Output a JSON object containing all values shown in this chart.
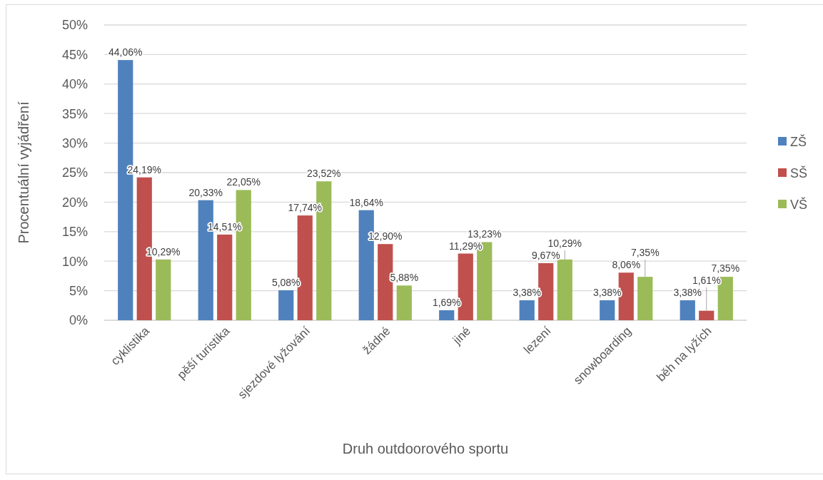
{
  "chart_data": {
    "type": "bar",
    "xlabel": "Druh outdoorového sportu",
    "ylabel": "Procentuální vyjádření",
    "categories": [
      "cyklistika",
      "pěší turistika",
      "sjezdové lyžování",
      "žádné",
      "jiné",
      "lezení",
      "snowboarding",
      "běh na lyžích"
    ],
    "series": [
      {
        "name": "ZŠ",
        "color": "#4f81bd",
        "values": [
          44.06,
          20.33,
          5.08,
          18.64,
          1.69,
          3.38,
          3.38,
          3.38
        ],
        "value_labels": [
          "44,06%",
          "20,33%",
          "5,08%",
          "18,64%",
          "1,69%",
          "3,38%",
          "3,38%",
          "3,38%"
        ]
      },
      {
        "name": "SŠ",
        "color": "#c0504d",
        "values": [
          24.19,
          14.51,
          17.74,
          12.9,
          11.29,
          9.67,
          8.06,
          1.61
        ],
        "value_labels": [
          "24,19%",
          "14,51%",
          "17,74%",
          "12,90%",
          "11,29%",
          "9,67%",
          "8,06%",
          "1,61%"
        ]
      },
      {
        "name": "VŠ",
        "color": "#9bbb59",
        "values": [
          10.29,
          22.05,
          23.52,
          5.88,
          13.23,
          10.29,
          7.35,
          7.35
        ],
        "value_labels": [
          "10,29%",
          "22,05%",
          "23,52%",
          "5,88%",
          "13,23%",
          "10,29%",
          "7,35%",
          "7,35%"
        ]
      }
    ],
    "ylim": [
      0,
      50
    ],
    "yticks": [
      {
        "value": 0,
        "label": "0%"
      },
      {
        "value": 5,
        "label": "5%"
      },
      {
        "value": 10,
        "label": "10%"
      },
      {
        "value": 15,
        "label": "15%"
      },
      {
        "value": 20,
        "label": "20%"
      },
      {
        "value": 25,
        "label": "25%"
      },
      {
        "value": 30,
        "label": "30%"
      },
      {
        "value": 35,
        "label": "35%"
      },
      {
        "value": 40,
        "label": "40%"
      },
      {
        "value": 45,
        "label": "45%"
      },
      {
        "value": 50,
        "label": "50%"
      }
    ],
    "grid": "y",
    "legend": "right"
  }
}
